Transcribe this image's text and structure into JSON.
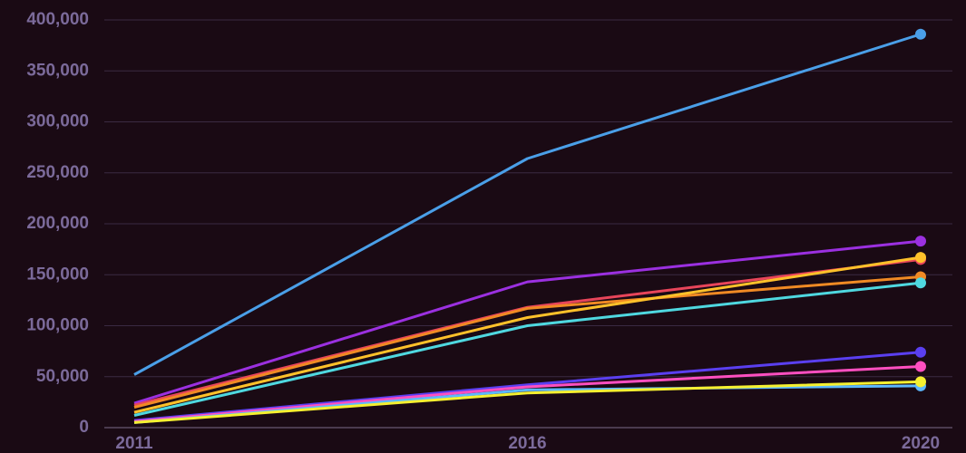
{
  "chart_data": {
    "type": "line",
    "categories": [
      "2011",
      "2016",
      "2020"
    ],
    "series": [
      {
        "color": "#4a9fe8",
        "values": [
          52000,
          264000,
          386000
        ]
      },
      {
        "color": "#9b30e0",
        "values": [
          24000,
          143000,
          183000
        ]
      },
      {
        "color": "#e8455a",
        "values": [
          22000,
          118000,
          165000
        ]
      },
      {
        "color": "#f08a24",
        "values": [
          20000,
          117000,
          148000
        ]
      },
      {
        "color": "#ffc12a",
        "values": [
          15000,
          108000,
          167000
        ]
      },
      {
        "color": "#4fd8e0",
        "values": [
          12000,
          100000,
          142000
        ]
      },
      {
        "color": "#5a3ff0",
        "values": [
          7000,
          42000,
          74000
        ]
      },
      {
        "color": "#ff4fc0",
        "values": [
          6000,
          40000,
          60000
        ]
      },
      {
        "color": "#5cb8ff",
        "values": [
          5000,
          37000,
          41000
        ]
      },
      {
        "color": "#f5f030",
        "values": [
          5000,
          34000,
          45000
        ]
      }
    ],
    "ylim": [
      0,
      400000
    ],
    "yticks": [
      0,
      {
        "value": 50000,
        "label": "50,000"
      },
      {
        "value": 100000,
        "label": "100,000"
      },
      {
        "value": 150000,
        "label": "150,000"
      },
      {
        "value": 200000,
        "label": "200,000"
      },
      {
        "value": 250000,
        "label": "250,000"
      },
      {
        "value": 300000,
        "label": "300,000"
      },
      {
        "value": 350000,
        "label": "350,000"
      },
      {
        "value": 400000,
        "label": "400,000"
      }
    ],
    "grid": true
  }
}
